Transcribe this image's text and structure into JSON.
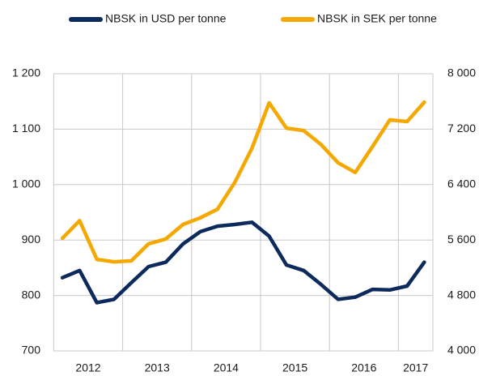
{
  "chart_data": {
    "type": "line",
    "categories": [
      null,
      "2012",
      null,
      null,
      null,
      "2013",
      null,
      null,
      null,
      "2014",
      null,
      null,
      null,
      "2015",
      null,
      null,
      null,
      "2016",
      null,
      null,
      "2017",
      null
    ],
    "series": [
      {
        "name": "NBSK in USD per tonne",
        "color": "#0d2a5c",
        "values": [
          832,
          845,
          787,
          793,
          823,
          852,
          860,
          893,
          915,
          925,
          928,
          932,
          907,
          855,
          845,
          820,
          793,
          797,
          811,
          810,
          817,
          860
        ]
      },
      {
        "name": "NBSK in SEK per tonne",
        "color": "#f5a800",
        "axis": "y2",
        "values": [
          5625,
          5880,
          5320,
          5285,
          5300,
          5545,
          5615,
          5825,
          5920,
          6045,
          6430,
          6925,
          7580,
          7215,
          7180,
          6980,
          6715,
          6575,
          6950,
          7335,
          7310,
          7590
        ]
      }
    ],
    "ylim": [
      700,
      1200
    ],
    "yticks": [
      700,
      800,
      900,
      {
        "value": 1000,
        "label": "1 000"
      },
      {
        "value": 1100,
        "label": "1 100"
      },
      {
        "value": 1200,
        "label": "1 200"
      }
    ],
    "y2lim": [
      4000,
      8000
    ],
    "y2ticks": [
      {
        "value": 4000,
        "label": "4 000"
      },
      {
        "value": 4800,
        "label": "4 800"
      },
      {
        "value": 5600,
        "label": "5 600"
      },
      {
        "value": 6400,
        "label": "6 400"
      },
      {
        "value": 7200,
        "label": "7 200"
      },
      {
        "value": 8000,
        "label": "8 000"
      }
    ],
    "grid": true
  }
}
